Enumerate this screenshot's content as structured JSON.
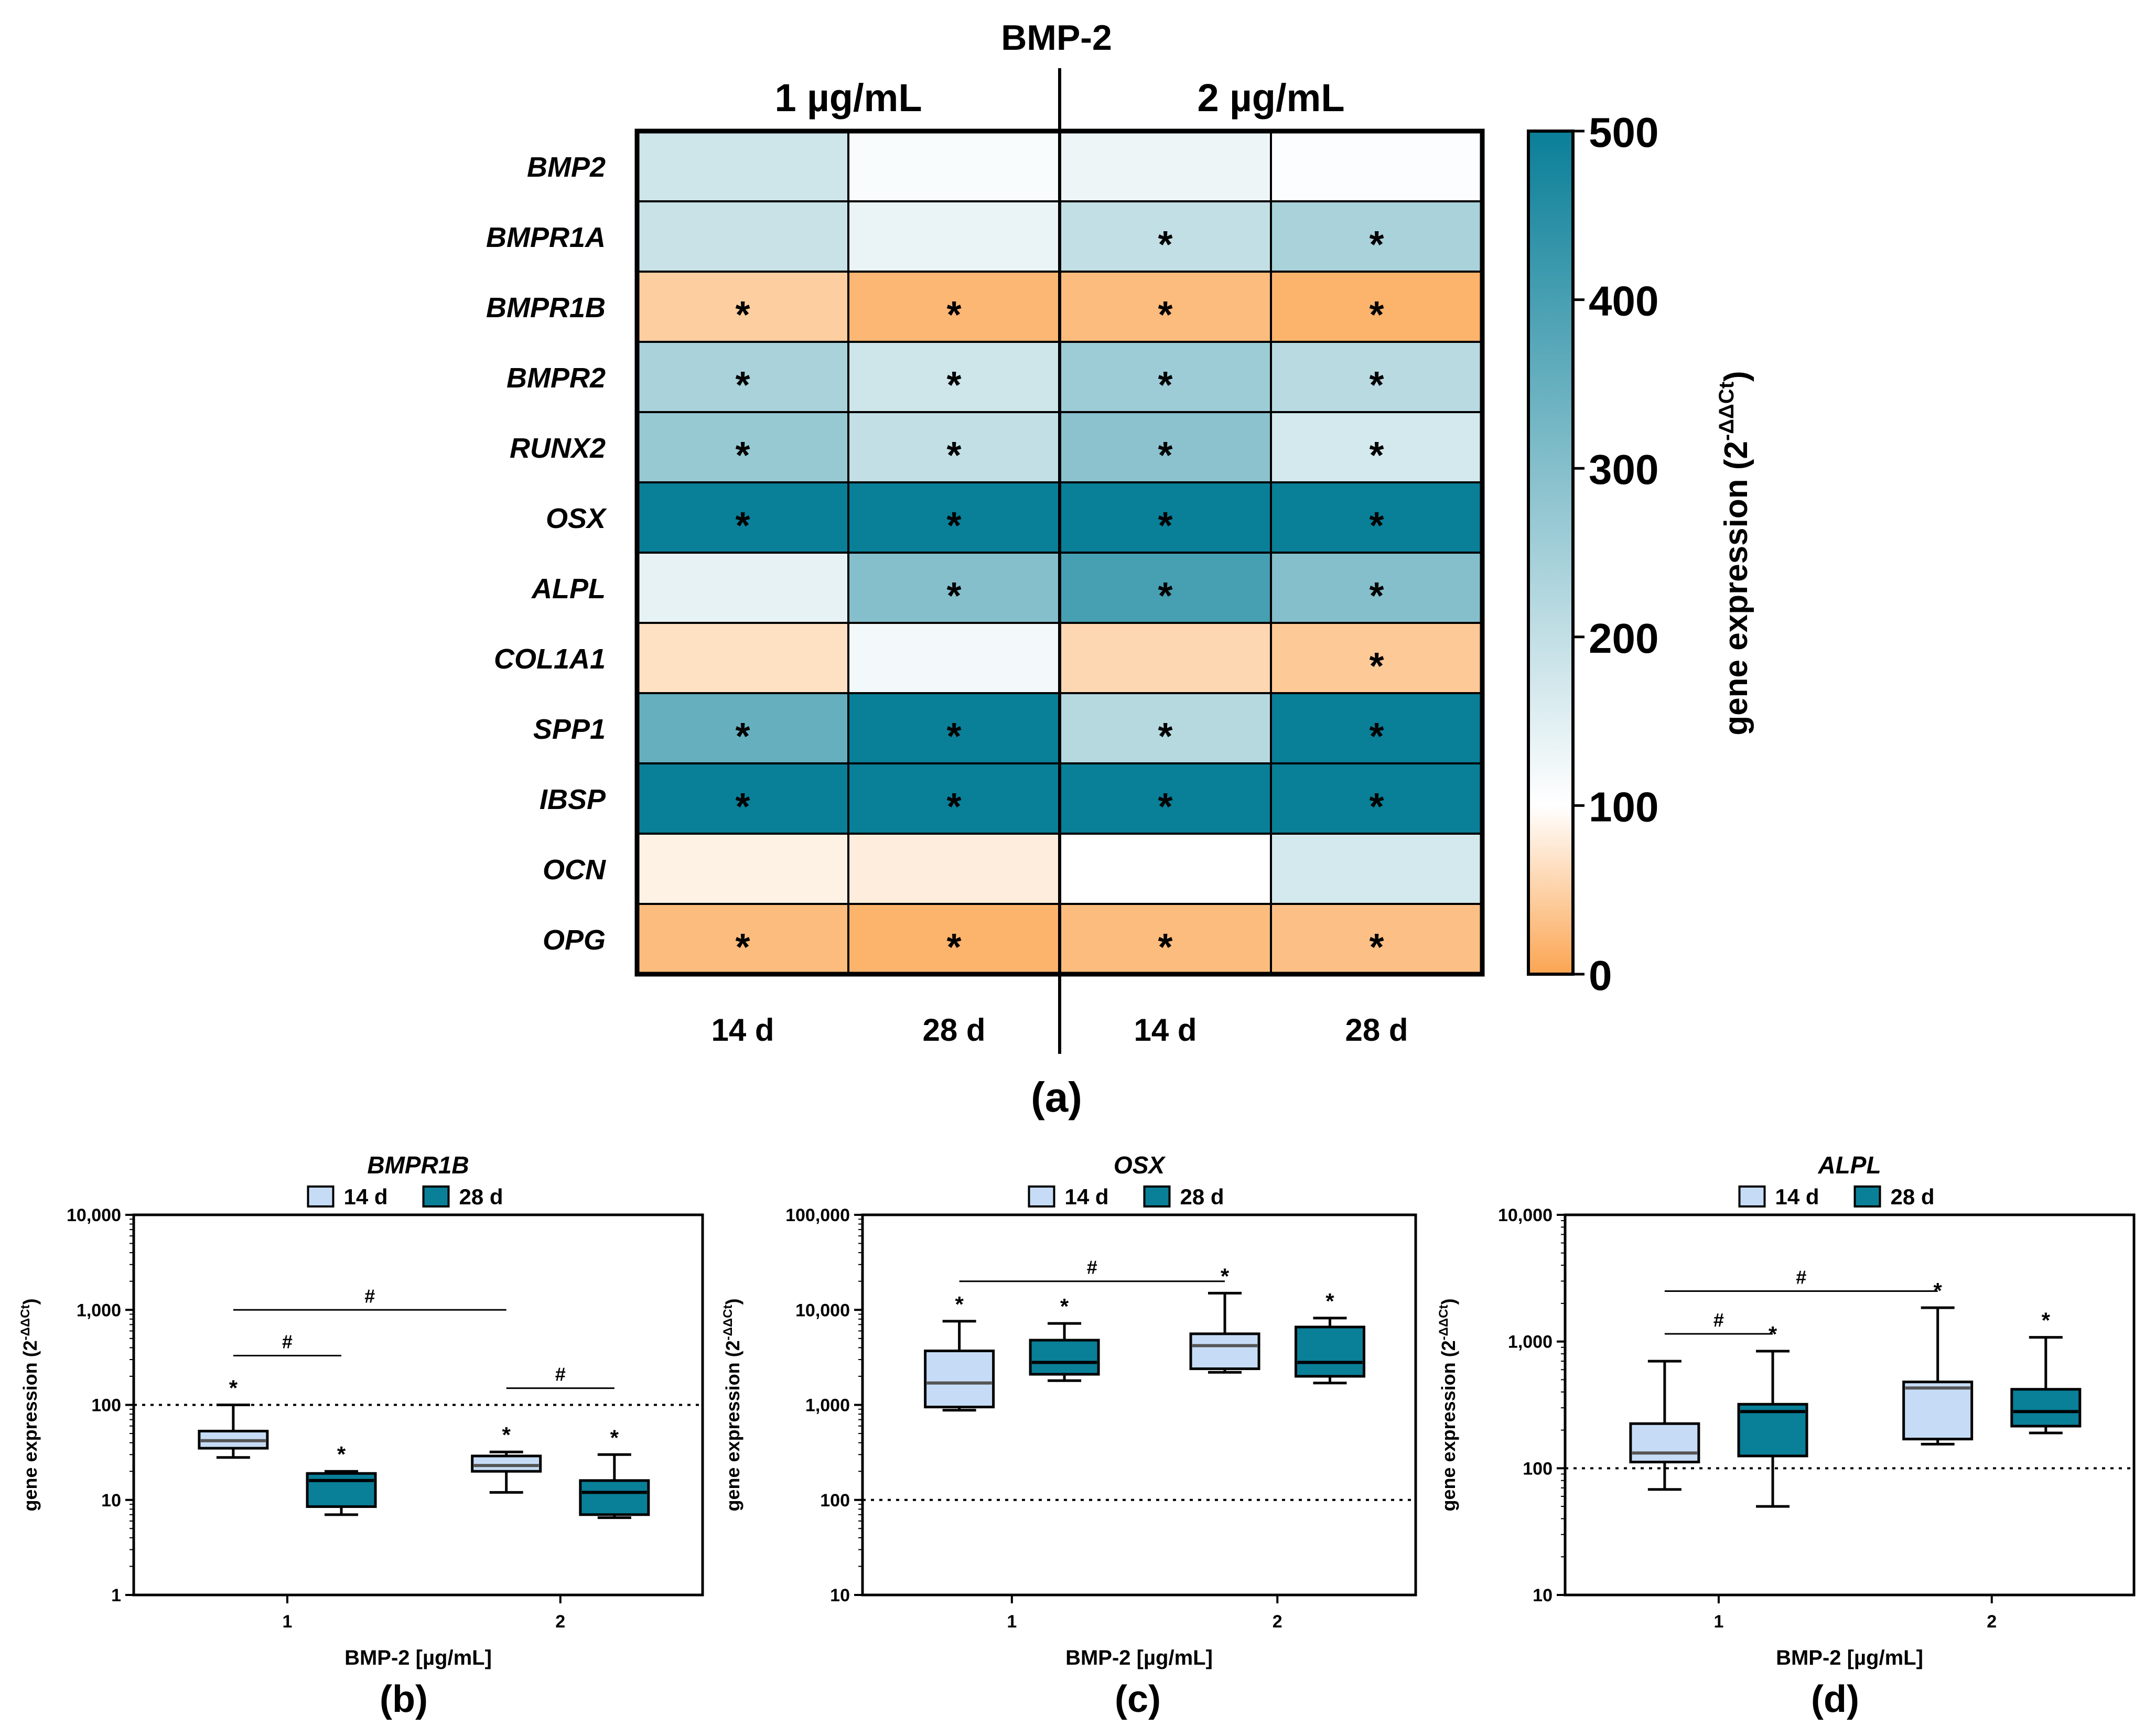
{
  "chart_data": [
    {
      "type": "heatmap",
      "group_title": "BMP-2",
      "column_groups": [
        "1 µg/mL",
        "2 µg/mL"
      ],
      "columns": [
        "14 d",
        "28 d",
        "14 d",
        "28 d"
      ],
      "rows": [
        "BMP2",
        "BMPR1A",
        "BMPR1B",
        "BMPR2",
        "RUNX2",
        "OSX",
        "ALPL",
        "COL1A1",
        "SPP1",
        "IBSP",
        "OCN",
        "OPG"
      ],
      "values": [
        [
          180,
          110,
          130,
          105
        ],
        [
          190,
          135,
          200,
          240
        ],
        [
          45,
          20,
          25,
          15
        ],
        [
          240,
          180,
          260,
          215
        ],
        [
          270,
          200,
          290,
          170
        ],
        [
          500,
          500,
          500,
          500
        ],
        [
          140,
          300,
          400,
          300
        ],
        [
          65,
          120,
          55,
          40
        ],
        [
          350,
          500,
          220,
          500
        ],
        [
          500,
          500,
          500,
          500
        ],
        [
          85,
          80,
          100,
          170
        ],
        [
          25,
          15,
          25,
          30
        ]
      ],
      "significant": [
        [
          false,
          false,
          false,
          false
        ],
        [
          false,
          false,
          true,
          true
        ],
        [
          true,
          true,
          true,
          true
        ],
        [
          true,
          true,
          true,
          true
        ],
        [
          true,
          true,
          true,
          true
        ],
        [
          true,
          true,
          true,
          true
        ],
        [
          false,
          true,
          true,
          true
        ],
        [
          false,
          false,
          false,
          true
        ],
        [
          true,
          true,
          true,
          true
        ],
        [
          true,
          true,
          true,
          true
        ],
        [
          false,
          false,
          false,
          false
        ],
        [
          true,
          true,
          true,
          true
        ]
      ],
      "colorbar": {
        "label": "gene expression (2",
        "label_sup": "-ΔΔCt",
        "label_end": ")",
        "range": [
          0,
          500
        ],
        "ticks": [
          "0",
          "100",
          "200",
          "300",
          "400",
          "500"
        ],
        "colors": {
          "low": "#fba552",
          "mid": "#ffffff",
          "high": "#0a7f98"
        }
      },
      "star": "*",
      "panel": "(a)"
    },
    {
      "type": "box",
      "title": "BMPR1B",
      "panel": "(b)",
      "xlabel": "BMP-2 [µg/mL]",
      "ylabel": "gene expression (2",
      "ylabel_sup": "-ΔΔCt",
      "ylabel_end": ")",
      "yscale": "log",
      "ylim": [
        1,
        10000
      ],
      "yticks": [
        "1",
        "10",
        "100",
        "1,000",
        "10,000"
      ],
      "categories": [
        "1",
        "2"
      ],
      "reference_line": 100,
      "legend": [
        {
          "name": "14 d",
          "color": "#c6dcf6"
        },
        {
          "name": "28 d",
          "color": "#0a7f98"
        }
      ],
      "boxes": [
        {
          "group": 0,
          "series": 0,
          "min": 28,
          "q1": 35,
          "median": 42,
          "q3": 53,
          "max": 100,
          "star": true
        },
        {
          "group": 0,
          "series": 1,
          "min": 7,
          "q1": 8.5,
          "median": 16,
          "q3": 19,
          "max": 20,
          "star": true
        },
        {
          "group": 1,
          "series": 0,
          "min": 12,
          "q1": 20,
          "median": 23,
          "q3": 29,
          "max": 32,
          "star": true
        },
        {
          "group": 1,
          "series": 1,
          "min": 6.5,
          "q1": 7,
          "median": 12,
          "q3": 16,
          "max": 30,
          "star": true
        }
      ],
      "brackets": [
        {
          "from": [
            0,
            0
          ],
          "to": [
            1,
            0
          ],
          "y": 1000,
          "label": "#"
        },
        {
          "from": [
            0,
            0
          ],
          "to": [
            0,
            1
          ],
          "y": 330,
          "label": "#"
        },
        {
          "from": [
            1,
            0
          ],
          "to": [
            1,
            1
          ],
          "y": 150,
          "label": "#"
        }
      ]
    },
    {
      "type": "box",
      "title": "OSX",
      "panel": "(c)",
      "xlabel": "BMP-2 [µg/mL]",
      "ylabel": "gene expression (2",
      "ylabel_sup": "-ΔΔCt",
      "ylabel_end": ")",
      "yscale": "log",
      "ylim": [
        10,
        100000
      ],
      "yticks": [
        "10",
        "100",
        "1,000",
        "10,000",
        "100,000"
      ],
      "categories": [
        "1",
        "2"
      ],
      "reference_line": 100,
      "legend": [
        {
          "name": "14 d",
          "color": "#c6dcf6"
        },
        {
          "name": "28 d",
          "color": "#0a7f98"
        }
      ],
      "boxes": [
        {
          "group": 0,
          "series": 0,
          "min": 880,
          "q1": 950,
          "median": 1700,
          "q3": 3700,
          "max": 7600,
          "star": true
        },
        {
          "group": 0,
          "series": 1,
          "min": 1800,
          "q1": 2100,
          "median": 2800,
          "q3": 4800,
          "max": 7200,
          "star": true
        },
        {
          "group": 1,
          "series": 0,
          "min": 2200,
          "q1": 2400,
          "median": 4200,
          "q3": 5600,
          "max": 15000,
          "star": true
        },
        {
          "group": 1,
          "series": 1,
          "min": 1700,
          "q1": 2000,
          "median": 2800,
          "q3": 6600,
          "max": 8200,
          "star": true
        }
      ],
      "brackets": [
        {
          "from": [
            0,
            0
          ],
          "to": [
            1,
            0
          ],
          "y": 20000,
          "label": "#"
        }
      ]
    },
    {
      "type": "box",
      "title": "ALPL",
      "panel": "(d)",
      "xlabel": "BMP-2 [µg/mL]",
      "ylabel": "gene expression (2",
      "ylabel_sup": "-ΔΔCt",
      "ylabel_end": ")",
      "yscale": "log",
      "ylim": [
        10,
        10000
      ],
      "yticks": [
        "10",
        "100",
        "1,000",
        "10,000"
      ],
      "categories": [
        "1",
        "2"
      ],
      "reference_line": 100,
      "legend": [
        {
          "name": "14 d",
          "color": "#c6dcf6"
        },
        {
          "name": "28 d",
          "color": "#0a7f98"
        }
      ],
      "boxes": [
        {
          "group": 0,
          "series": 0,
          "min": 68,
          "q1": 112,
          "median": 132,
          "q3": 225,
          "max": 700,
          "star": false
        },
        {
          "group": 0,
          "series": 1,
          "min": 50,
          "q1": 125,
          "median": 280,
          "q3": 320,
          "max": 840,
          "star": true
        },
        {
          "group": 1,
          "series": 0,
          "min": 155,
          "q1": 170,
          "median": 430,
          "q3": 480,
          "max": 1850,
          "star": true
        },
        {
          "group": 1,
          "series": 1,
          "min": 190,
          "q1": 215,
          "median": 280,
          "q3": 420,
          "max": 1080,
          "star": true
        }
      ],
      "brackets": [
        {
          "from": [
            0,
            0
          ],
          "to": [
            1,
            0
          ],
          "y": 2500,
          "label": "#"
        },
        {
          "from": [
            0,
            0
          ],
          "to": [
            0,
            1
          ],
          "y": 1150,
          "label": "#"
        }
      ]
    }
  ]
}
